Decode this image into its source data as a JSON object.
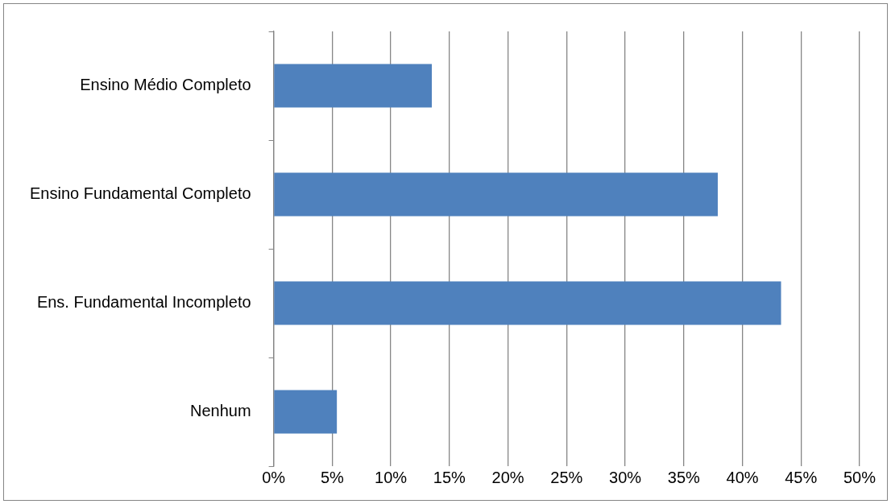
{
  "chart_data": {
    "type": "bar",
    "orientation": "horizontal",
    "categories": [
      "Ensino Médio Completo",
      "Ensino Fundamental Completo",
      "Ens. Fundamental Incompleto",
      "Nenhum"
    ],
    "values": [
      13.5,
      37.9,
      43.3,
      5.4
    ],
    "color": "#4f81bd",
    "xlim": [
      0,
      50
    ],
    "xticks": [
      {
        "value": 0,
        "label": "0%"
      },
      {
        "value": 5,
        "label": "5%"
      },
      {
        "value": 10,
        "label": "10%"
      },
      {
        "value": 15,
        "label": "15%"
      },
      {
        "value": 20,
        "label": "20%"
      },
      {
        "value": 25,
        "label": "25%"
      },
      {
        "value": 30,
        "label": "30%"
      },
      {
        "value": 35,
        "label": "35%"
      },
      {
        "value": 40,
        "label": "40%"
      },
      {
        "value": 45,
        "label": "45%"
      },
      {
        "value": 50,
        "label": "50%"
      }
    ],
    "grid": "x",
    "legend": false
  }
}
